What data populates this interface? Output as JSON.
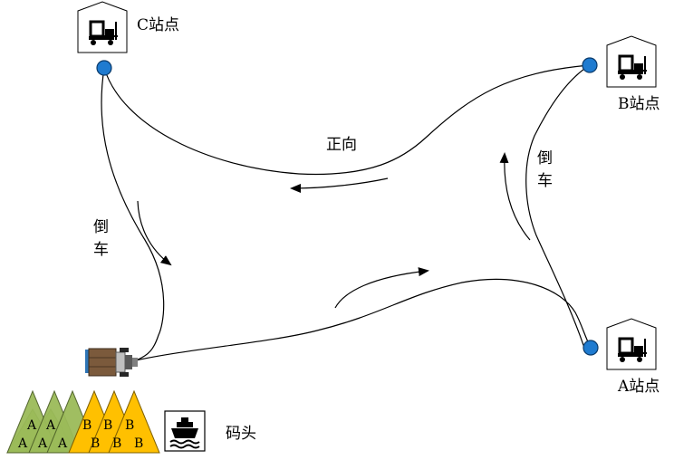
{
  "stations": {
    "c": {
      "label": "C站点",
      "icon": "forklift-warehouse-icon"
    },
    "b": {
      "label": "B站点",
      "icon": "forklift-warehouse-icon"
    },
    "a": {
      "label": "A站点",
      "icon": "forklift-warehouse-icon"
    }
  },
  "labels": {
    "forward": "正向",
    "reverse_left_1": "倒",
    "reverse_left_2": "车",
    "reverse_right_1": "倒",
    "reverse_right_2": "车"
  },
  "dock": {
    "label": "码头",
    "icon": "ship-icon"
  },
  "cargo": {
    "a_letter": "A",
    "b_letter": "B"
  },
  "vehicle": {
    "icon": "agv-truck-icon"
  },
  "colors": {
    "node_fill": "#1f7bd0",
    "pile_a": "#9bbb59",
    "pile_b": "#ffc000",
    "line": "#000000"
  }
}
